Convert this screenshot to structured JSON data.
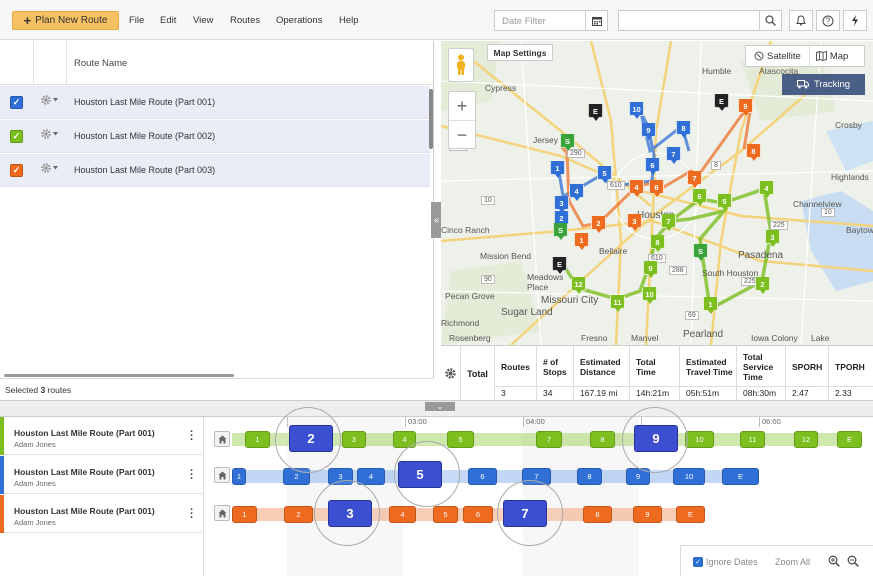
{
  "toolbar": {
    "plan_button": "Plan New Route",
    "menus": [
      "File",
      "Edit",
      "View",
      "Routes",
      "Operations",
      "Help"
    ],
    "date_filter_placeholder": "Date Filter",
    "search_placeholder": ""
  },
  "route_list": {
    "header_title": "Route Name",
    "rows": [
      {
        "name": "Houston Last Mile Route (Part 001)",
        "color": "#2f6fd6"
      },
      {
        "name": "Houston Last Mile Route (Part 002)",
        "color": "#7cbf1f"
      },
      {
        "name": "Houston Last Mile Route (Part 003)",
        "color": "#ee6a1f"
      }
    ],
    "footer_prefix": "Selected ",
    "footer_count": "3",
    "footer_suffix": " routes"
  },
  "map": {
    "settings_label": "Map Settings",
    "satellite_label": "Satellite",
    "map_label": "Map",
    "tracking_label": "Tracking",
    "labels": [
      {
        "text": "Cypress"
      },
      {
        "text": "Humble"
      },
      {
        "text": "Atascocita"
      },
      {
        "text": "Jersey"
      },
      {
        "text": "Crosby"
      },
      {
        "text": "Highlands"
      },
      {
        "text": "Channelview"
      },
      {
        "text": "Baytown"
      },
      {
        "text": "Pasadena"
      },
      {
        "text": "South Houston"
      },
      {
        "text": "Mission Bend"
      },
      {
        "text": "Bellaire"
      },
      {
        "text": "Meadows Place"
      },
      {
        "text": "Missouri City"
      },
      {
        "text": "Pecan Grove"
      },
      {
        "text": "Sugar Land"
      },
      {
        "text": "Pearland"
      },
      {
        "text": "Richmond"
      },
      {
        "text": "Rosenberg"
      },
      {
        "text": "Manvel"
      },
      {
        "text": "Iowa Colony"
      },
      {
        "text": "Houston"
      },
      {
        "text": "Lake"
      },
      {
        "text": "Fresno"
      },
      {
        "text": "Cinco Ranch"
      }
    ],
    "markers": [
      {
        "label": "E",
        "color": "#222"
      },
      {
        "label": "10",
        "color": "#2f6fd6"
      },
      {
        "label": "E",
        "color": "#222"
      },
      {
        "label": "9",
        "color": "#ee6a1f"
      },
      {
        "label": "S",
        "color": "#3aa33a"
      },
      {
        "label": "9",
        "color": "#2f6fd6"
      },
      {
        "label": "8",
        "color": "#2f6fd6"
      },
      {
        "label": "7",
        "color": "#2f6fd6"
      },
      {
        "label": "8",
        "color": "#ee6a1f"
      },
      {
        "label": "6",
        "color": "#2f6fd6"
      },
      {
        "label": "1",
        "color": "#2f6fd6"
      },
      {
        "label": "5",
        "color": "#2f6fd6"
      },
      {
        "label": "4",
        "color": "#ee6a1f"
      },
      {
        "label": "6",
        "color": "#ee6a1f"
      },
      {
        "label": "7",
        "color": "#ee6a1f"
      },
      {
        "label": "6",
        "color": "#7cbf1f"
      },
      {
        "label": "4",
        "color": "#7cbf1f"
      },
      {
        "label": "4",
        "color": "#2f6fd6"
      },
      {
        "label": "3",
        "color": "#2f6fd6"
      },
      {
        "label": "2",
        "color": "#2f6fd6"
      },
      {
        "label": "5",
        "color": "#7cbf1f"
      },
      {
        "label": "2",
        "color": "#ee6a1f"
      },
      {
        "label": "3",
        "color": "#ee6a1f"
      },
      {
        "label": "7",
        "color": "#7cbf1f"
      },
      {
        "label": "S",
        "color": "#3aa33a"
      },
      {
        "label": "1",
        "color": "#ee6a1f"
      },
      {
        "label": "8",
        "color": "#7cbf1f"
      },
      {
        "label": "3",
        "color": "#7cbf1f"
      },
      {
        "label": "S",
        "color": "#3aa33a"
      },
      {
        "label": "E",
        "color": "#222"
      },
      {
        "label": "9",
        "color": "#7cbf1f"
      },
      {
        "label": "12",
        "color": "#7cbf1f"
      },
      {
        "label": "10",
        "color": "#7cbf1f"
      },
      {
        "label": "2",
        "color": "#7cbf1f"
      },
      {
        "label": "11",
        "color": "#7cbf1f"
      },
      {
        "label": "1",
        "color": "#7cbf1f"
      }
    ],
    "highway_labels": [
      {
        "text": "290"
      },
      {
        "text": "290"
      },
      {
        "text": "10"
      },
      {
        "text": "10"
      },
      {
        "text": "610"
      },
      {
        "text": "610"
      },
      {
        "text": "69"
      },
      {
        "text": "288"
      },
      {
        "text": "90"
      },
      {
        "text": "8"
      },
      {
        "text": "225"
      },
      {
        "text": "225"
      }
    ]
  },
  "stats": {
    "total_label": "Total",
    "columns": [
      {
        "header": "Routes",
        "value": "3"
      },
      {
        "header": "# of Stops",
        "value": "34"
      },
      {
        "header": "Estimated Distance",
        "value": "167.19 mi"
      },
      {
        "header": "Total Time",
        "value": "14h:21m"
      },
      {
        "header": "Estimated Travel Time",
        "value": "05h:51m"
      },
      {
        "header": "Total Service Time",
        "value": "08h:30m"
      },
      {
        "header": "SPORH",
        "value": "2.47"
      },
      {
        "header": "TPORH",
        "value": "2.33"
      }
    ]
  },
  "gantt": {
    "times": [
      "03:00",
      "04:00",
      "06:00"
    ],
    "rows": [
      {
        "title": "Houston Last Mile Route (Part 001)",
        "driver": "Adam Jones",
        "color": "#7cbf1f",
        "stops": [
          "1",
          "2",
          "3",
          "4",
          "5",
          "7",
          "8",
          "9",
          "10",
          "11",
          "12",
          "E"
        ]
      },
      {
        "title": "Houston Last Mile Route (Part 001)",
        "driver": "Adam Jones",
        "color": "#2f6fd6",
        "stops": [
          "1",
          "2",
          "3",
          "4",
          "5",
          "6",
          "7",
          "8",
          "9",
          "10",
          "E"
        ]
      },
      {
        "title": "Houston Last Mile Route (Part 001)",
        "driver": "Adam Jones",
        "color": "#ee6a1f",
        "stops": [
          "1",
          "2",
          "3",
          "4",
          "5",
          "6",
          "7",
          "8",
          "9",
          "E"
        ]
      }
    ],
    "magnified": [
      "2",
      "9",
      "5",
      "3",
      "7"
    ],
    "ignore_dates_label": "Ignore Dates",
    "zoom_all_label": "Zoom All"
  }
}
